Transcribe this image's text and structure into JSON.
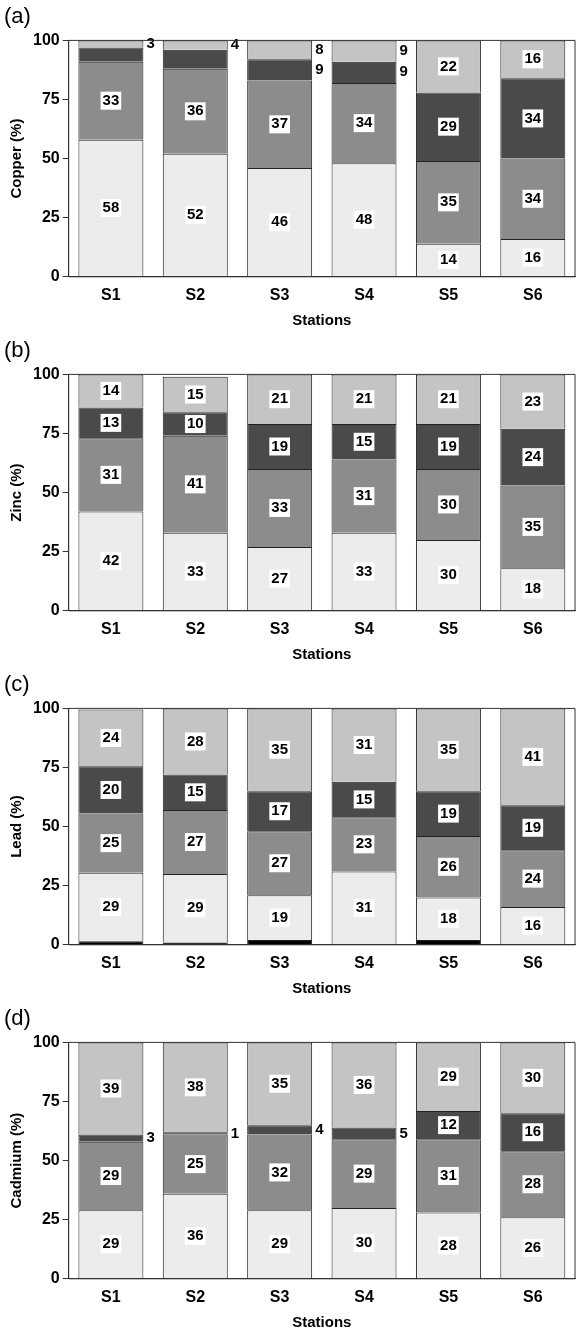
{
  "chart_data": [
    {
      "type": "bar",
      "title": "(a)",
      "xlabel": "Stations",
      "ylabel": "Copper (%)",
      "categories": [
        "S1",
        "S2",
        "S3",
        "S4",
        "S5",
        "S6"
      ],
      "stacked": true,
      "ylim": [
        0,
        100
      ],
      "yticks": [
        0,
        25,
        50,
        75,
        100
      ],
      "series": [
        {
          "color": "#ececec",
          "values": [
            58,
            52,
            46,
            48,
            14,
            16
          ],
          "value_labels": [
            "58",
            "52",
            "46",
            "48",
            "14",
            "16"
          ]
        },
        {
          "color": "#8c8c8c",
          "values": [
            33,
            36,
            37,
            34,
            35,
            34
          ],
          "value_labels": [
            "33",
            "36",
            "37",
            "34",
            "35",
            "34"
          ]
        },
        {
          "color": "#4a4a4a",
          "values": [
            6,
            8,
            9,
            9,
            29,
            34
          ],
          "value_labels": [
            null,
            null,
            "9",
            "9",
            "29",
            "34"
          ]
        },
        {
          "color": "#c4c4c4",
          "values": [
            3,
            4,
            8,
            9,
            22,
            16
          ],
          "value_labels": [
            "3",
            "4",
            "8",
            "9",
            "22",
            "16"
          ]
        }
      ]
    },
    {
      "type": "bar",
      "title": "(b)",
      "xlabel": "Stations",
      "ylabel": "Zinc (%)",
      "categories": [
        "S1",
        "S2",
        "S3",
        "S4",
        "S5",
        "S6"
      ],
      "stacked": true,
      "ylim": [
        0,
        100
      ],
      "yticks": [
        0,
        25,
        50,
        75,
        100
      ],
      "series": [
        {
          "color": "#ececec",
          "values": [
            42,
            33,
            27,
            33,
            30,
            18
          ],
          "value_labels": [
            "42",
            "33",
            "27",
            "33",
            "30",
            "18"
          ]
        },
        {
          "color": "#8c8c8c",
          "values": [
            31,
            41,
            33,
            31,
            30,
            35
          ],
          "value_labels": [
            "31",
            "41",
            "33",
            "31",
            "30",
            "35"
          ]
        },
        {
          "color": "#4a4a4a",
          "values": [
            13,
            10,
            19,
            15,
            19,
            24
          ],
          "value_labels": [
            "13",
            "10",
            "19",
            "15",
            "19",
            "24"
          ]
        },
        {
          "color": "#c4c4c4",
          "values": [
            14,
            15,
            21,
            21,
            21,
            23
          ],
          "value_labels": [
            "14",
            "15",
            "21",
            "21",
            "21",
            "23"
          ]
        }
      ]
    },
    {
      "type": "bar",
      "title": "(c)",
      "xlabel": "Stations",
      "ylabel": "Lead (%)",
      "categories": [
        "S1",
        "S2",
        "S3",
        "S4",
        "S5",
        "S6"
      ],
      "stacked": true,
      "ylim": [
        0,
        100
      ],
      "yticks": [
        0,
        25,
        50,
        75,
        100
      ],
      "series": [
        {
          "color": "#000000",
          "values": [
            1.5,
            1,
            2,
            null,
            2,
            null
          ]
        },
        {
          "color": "#ececec",
          "values": [
            29,
            29,
            19,
            31,
            18,
            16
          ],
          "value_labels": [
            "29",
            "29",
            "19",
            "31",
            "18",
            "16"
          ]
        },
        {
          "color": "#8c8c8c",
          "values": [
            25,
            27,
            27,
            23,
            26,
            24
          ],
          "value_labels": [
            "25",
            "27",
            "27",
            "23",
            "26",
            "24"
          ]
        },
        {
          "color": "#4a4a4a",
          "values": [
            20,
            15,
            17,
            15,
            19,
            19
          ],
          "value_labels": [
            "20",
            "15",
            "17",
            "15",
            "19",
            "19"
          ]
        },
        {
          "color": "#c4c4c4",
          "values": [
            24,
            28,
            35,
            31,
            35,
            41
          ],
          "value_labels": [
            "24",
            "28",
            "35",
            "31",
            "35",
            "41"
          ]
        }
      ]
    },
    {
      "type": "bar",
      "title": "(d)",
      "xlabel": "Stations",
      "ylabel": "Cadmium (%)",
      "categories": [
        "S1",
        "S2",
        "S3",
        "S4",
        "S5",
        "S6"
      ],
      "stacked": true,
      "ylim": [
        0,
        100
      ],
      "yticks": [
        0,
        25,
        50,
        75,
        100
      ],
      "series": [
        {
          "color": "#ececec",
          "values": [
            29,
            36,
            29,
            30,
            28,
            26
          ],
          "value_labels": [
            "29",
            "36",
            "29",
            "30",
            "28",
            "26"
          ]
        },
        {
          "color": "#8c8c8c",
          "values": [
            29,
            25,
            32,
            29,
            31,
            28
          ],
          "value_labels": [
            "29",
            "25",
            "32",
            "29",
            "31",
            "28"
          ]
        },
        {
          "color": "#4a4a4a",
          "values": [
            3,
            1,
            4,
            5,
            12,
            16
          ],
          "value_labels": [
            "3",
            "1",
            "4",
            "5",
            "12",
            "16"
          ]
        },
        {
          "color": "#c4c4c4",
          "values": [
            39,
            38,
            35,
            36,
            29,
            30
          ],
          "value_labels": [
            "39",
            "38",
            "35",
            "36",
            "29",
            "30"
          ]
        }
      ]
    }
  ]
}
